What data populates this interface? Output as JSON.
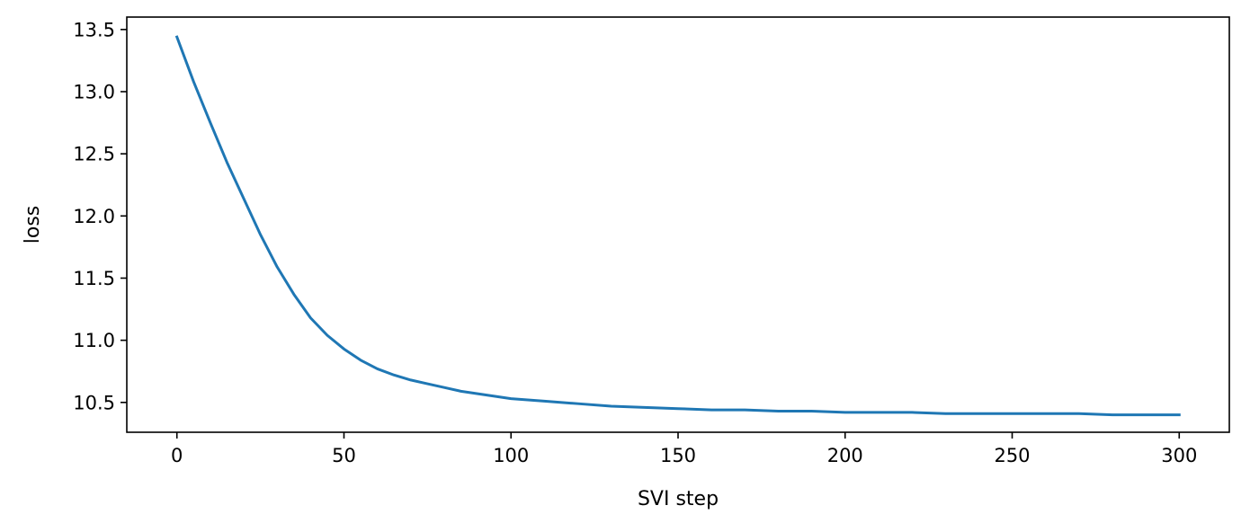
{
  "chart_data": {
    "type": "line",
    "title": "",
    "xlabel": "SVI step",
    "ylabel": "loss",
    "xlim": [
      -15,
      315
    ],
    "ylim": [
      10.26,
      13.6
    ],
    "xticks": [
      0,
      50,
      100,
      150,
      200,
      250,
      300
    ],
    "xtick_labels": [
      "0",
      "50",
      "100",
      "150",
      "200",
      "250",
      "300"
    ],
    "yticks": [
      10.5,
      11.0,
      11.5,
      12.0,
      12.5,
      13.0,
      13.5
    ],
    "ytick_labels": [
      "10.5",
      "11.0",
      "11.5",
      "12.0",
      "12.5",
      "13.0",
      "13.5"
    ],
    "grid": false,
    "line_color": "#1f77b4",
    "series": [
      {
        "x": [
          0,
          5,
          10,
          15,
          20,
          25,
          30,
          35,
          40,
          45,
          50,
          55,
          60,
          65,
          70,
          75,
          80,
          85,
          90,
          95,
          100,
          110,
          120,
          130,
          140,
          150,
          160,
          170,
          180,
          190,
          200,
          210,
          220,
          230,
          240,
          250,
          260,
          270,
          280,
          290,
          300
        ],
        "y": [
          13.44,
          13.08,
          12.75,
          12.43,
          12.14,
          11.85,
          11.59,
          11.37,
          11.18,
          11.04,
          10.93,
          10.84,
          10.77,
          10.72,
          10.68,
          10.65,
          10.62,
          10.59,
          10.57,
          10.55,
          10.53,
          10.51,
          10.49,
          10.47,
          10.46,
          10.45,
          10.44,
          10.44,
          10.43,
          10.43,
          10.42,
          10.42,
          10.42,
          10.41,
          10.41,
          10.41,
          10.41,
          10.41,
          10.4,
          10.4,
          10.4
        ]
      }
    ]
  }
}
